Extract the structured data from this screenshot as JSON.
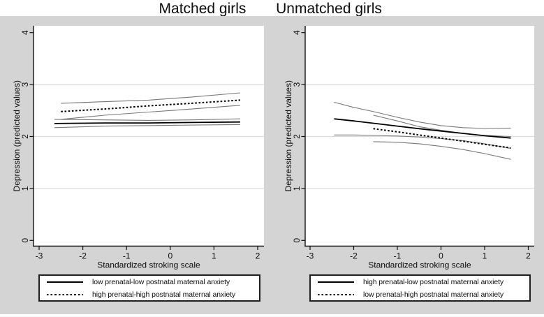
{
  "page": {
    "panel_titles": [
      {
        "label": "Matched girls"
      },
      {
        "label": "Unmatched girls"
      }
    ]
  },
  "colors": {
    "figure_background": "#d4d4d4",
    "plot_background": "#ffffff",
    "gridline": "#dcdcdc",
    "axis": "#111111",
    "mean_line": "#000000",
    "ci_line": "#787878"
  },
  "chart_data": [
    {
      "type": "line",
      "panel_title": "Matched girls",
      "xlabel": "Standardized stroking scale",
      "ylabel": "Depression (predicted values)",
      "xlim": [
        -3.128,
        2.144
      ],
      "ylim": [
        -0.11,
        4.13
      ],
      "x_ticks": [
        -3,
        -2,
        -1,
        0,
        1,
        2
      ],
      "y_ticks": [
        0,
        1,
        2,
        3,
        4
      ],
      "grid_y": [
        1,
        2,
        3
      ],
      "legend_position": "below",
      "series": [
        {
          "name": "low-low ci upper",
          "role": "ci",
          "style": "ci",
          "x": [
            -2.65,
            -1.5,
            -0.5,
            0.5,
            1.6
          ],
          "y": [
            2.33,
            2.32,
            2.31,
            2.32,
            2.34
          ]
        },
        {
          "name": "low-low ci lower",
          "role": "ci",
          "style": "ci",
          "x": [
            -2.65,
            -1.5,
            -0.5,
            0.5,
            1.6
          ],
          "y": [
            2.17,
            2.2,
            2.21,
            2.22,
            2.23
          ]
        },
        {
          "name": "high-high ci upper",
          "role": "ci",
          "style": "ci",
          "x": [
            -2.5,
            -1.5,
            -0.5,
            0.5,
            1.6
          ],
          "y": [
            2.64,
            2.67,
            2.7,
            2.76,
            2.84
          ]
        },
        {
          "name": "high-high ci lower",
          "role": "ci",
          "style": "ci",
          "x": [
            -2.5,
            -1.5,
            -0.5,
            0.5,
            1.6
          ],
          "y": [
            2.33,
            2.41,
            2.47,
            2.53,
            2.6
          ]
        },
        {
          "name": "high prenatal-high postnatal maternal anxiety",
          "role": "mean",
          "style": "dotted",
          "x": [
            -2.5,
            -1.5,
            -0.5,
            0.5,
            1.6
          ],
          "y": [
            2.48,
            2.53,
            2.59,
            2.64,
            2.7
          ]
        },
        {
          "name": "low prenatal-low postnatal maternal anxiety",
          "role": "mean",
          "style": "solid",
          "x": [
            -2.65,
            -1.5,
            -0.5,
            0.5,
            1.6
          ],
          "y": [
            2.25,
            2.26,
            2.26,
            2.27,
            2.28
          ]
        }
      ],
      "legend": [
        {
          "label": "low prenatal-low postnatal maternal anxiety",
          "style": "solid"
        },
        {
          "label": "high prenatal-high postnatal maternal anxiety",
          "style": "dotted"
        }
      ]
    },
    {
      "type": "line",
      "panel_title": "Unmatched girls",
      "xlabel": "Standardized stroking scale",
      "ylabel": "Depression (predicted values)",
      "xlim": [
        -3.112,
        2.136
      ],
      "ylim": [
        -0.11,
        4.13
      ],
      "x_ticks": [
        -3,
        -2,
        -1,
        0,
        1,
        2
      ],
      "y_ticks": [
        0,
        1,
        2,
        3,
        4
      ],
      "grid_y": [
        1,
        2,
        3
      ],
      "legend_position": "below",
      "series": [
        {
          "name": "high-low ci upper",
          "role": "ci",
          "style": "ci",
          "x": [
            -2.45,
            -2,
            -1.5,
            -1,
            -0.5,
            0,
            0.5,
            1,
            1.6
          ],
          "y": [
            2.66,
            2.56,
            2.47,
            2.37,
            2.28,
            2.21,
            2.17,
            2.155,
            2.16
          ]
        },
        {
          "name": "high-low ci lower",
          "role": "ci",
          "style": "ci",
          "x": [
            -2.45,
            -2,
            -1.5,
            -1,
            -0.5,
            0,
            0.5,
            1,
            1.6
          ],
          "y": [
            2.03,
            2.03,
            2.02,
            2.01,
            1.99,
            1.96,
            1.92,
            1.86,
            1.77
          ]
        },
        {
          "name": "low-high ci upper",
          "role": "ci",
          "style": "ci",
          "x": [
            -1.55,
            -1,
            -0.5,
            0,
            0.5,
            1,
            1.6
          ],
          "y": [
            2.41,
            2.3,
            2.19,
            2.12,
            2.06,
            2.02,
            2.0
          ]
        },
        {
          "name": "low-high ci lower",
          "role": "ci",
          "style": "ci",
          "x": [
            -1.55,
            -1,
            -0.5,
            0,
            0.5,
            1,
            1.6
          ],
          "y": [
            1.9,
            1.89,
            1.86,
            1.81,
            1.75,
            1.67,
            1.56
          ]
        },
        {
          "name": "low prenatal-high postnatal maternal anxiety",
          "role": "mean",
          "style": "dotted",
          "x": [
            -1.55,
            -1,
            -0.5,
            0,
            0.5,
            1,
            1.6
          ],
          "y": [
            2.15,
            2.09,
            2.03,
            1.97,
            1.91,
            1.85,
            1.78
          ]
        },
        {
          "name": "high prenatal-low postnatal maternal anxiety",
          "role": "mean",
          "style": "solid",
          "x": [
            -2.45,
            -2,
            -1.5,
            -1,
            -0.5,
            0,
            0.5,
            1,
            1.6
          ],
          "y": [
            2.34,
            2.3,
            2.25,
            2.2,
            2.15,
            2.105,
            2.06,
            2.015,
            1.97
          ]
        }
      ],
      "legend": [
        {
          "label": "high prenatal-low postnatal maternal anxiety",
          "style": "solid"
        },
        {
          "label": "low prenatal-high postnatal maternal anxiety",
          "style": "dotted"
        }
      ]
    }
  ]
}
